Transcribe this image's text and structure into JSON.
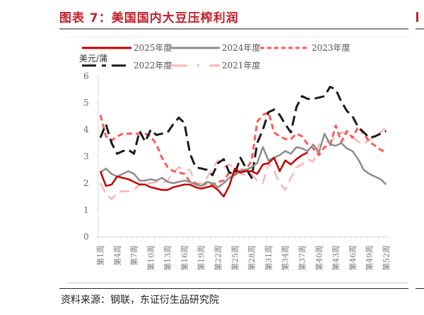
{
  "header": {
    "title": "图表 7：美国国内大豆压榨利润"
  },
  "footer": {
    "source": "资料来源：钢联，东证衍生品研究院"
  },
  "chart_data": {
    "type": "line",
    "title": "图表 7：美国国内大豆压榨利润",
    "ylabel": "美元/蒲",
    "xlabel": "",
    "ylim": [
      0,
      6
    ],
    "yticks": [
      0,
      1,
      2,
      3,
      4,
      5,
      6
    ],
    "xtick_labels": [
      "第1周",
      "第4周",
      "第7周",
      "第10周",
      "第13周",
      "第16周",
      "第19周",
      "第22周",
      "第25周",
      "第28周",
      "第31周",
      "第34周",
      "第37周",
      "第40周",
      "第43周",
      "第46周",
      "第49周",
      "第52周"
    ],
    "x": [
      1,
      2,
      3,
      4,
      5,
      6,
      7,
      8,
      9,
      10,
      11,
      12,
      13,
      14,
      15,
      16,
      17,
      18,
      19,
      20,
      21,
      22,
      23,
      24,
      25,
      26,
      27,
      28,
      29,
      30,
      31,
      32,
      33,
      34,
      35,
      36,
      37,
      38,
      39,
      40,
      41,
      42,
      43,
      44,
      45,
      46,
      47,
      48,
      49,
      50,
      51,
      52
    ],
    "grid": false,
    "legend_position": "top",
    "series": [
      {
        "name": "2025年度",
        "color": "#c00000",
        "style": "solid",
        "values": [
          2.45,
          1.9,
          1.95,
          2.25,
          2.2,
          2.15,
          2.05,
          1.95,
          1.95,
          1.85,
          1.8,
          1.75,
          1.75,
          1.85,
          1.9,
          1.95,
          1.95,
          1.85,
          1.8,
          1.85,
          1.9,
          1.75,
          1.5,
          1.9,
          2.55,
          2.4,
          2.45,
          2.45,
          2.35,
          2.7,
          2.75,
          2.95,
          2.45,
          2.85,
          2.7,
          2.9,
          3.05,
          3.15
        ]
      },
      {
        "name": "2024年度",
        "color": "#8c8c8c",
        "style": "solid",
        "values": [
          2.4,
          2.55,
          2.35,
          2.25,
          2.35,
          2.45,
          2.35,
          2.1,
          2.1,
          2.15,
          2.1,
          2.2,
          2.05,
          2.0,
          2.05,
          2.1,
          2.05,
          1.95,
          1.9,
          2.05,
          2.0,
          1.85,
          2.0,
          2.2,
          2.3,
          2.45,
          2.5,
          2.6,
          2.75,
          3.35,
          2.85,
          2.95,
          3.05,
          3.2,
          3.1,
          3.35,
          3.3,
          3.2,
          3.45,
          3.15,
          3.85,
          3.45,
          3.4,
          3.5,
          3.3,
          3.2,
          2.9,
          2.5,
          2.35,
          2.25,
          2.15,
          1.95
        ]
      },
      {
        "name": "2023年度",
        "color": "#ff5a5a",
        "style": "dashed",
        "values": [
          4.55,
          3.75,
          3.6,
          3.75,
          3.85,
          3.85,
          3.85,
          3.85,
          3.85,
          3.75,
          3.45,
          2.95,
          2.6,
          2.45,
          2.4,
          2.35,
          2.05,
          2.0,
          1.9,
          2.0,
          1.95,
          2.05,
          2.1,
          2.4,
          2.35,
          2.5,
          2.5,
          2.85,
          4.3,
          4.55,
          4.65,
          3.9,
          3.75,
          3.65,
          3.65,
          3.85,
          3.75,
          3.45,
          3.3,
          3.05,
          3.35,
          3.4,
          4.15,
          3.55,
          3.95,
          3.7,
          4.1,
          3.85,
          3.55,
          3.4,
          3.25,
          3.15
        ]
      },
      {
        "name": "2022年度",
        "color": "#1a1a1a",
        "style": "dashdot",
        "values": [
          3.7,
          4.2,
          3.5,
          3.1,
          3.2,
          3.25,
          3.1,
          3.95,
          3.55,
          4.0,
          3.8,
          3.85,
          3.9,
          4.2,
          4.45,
          4.25,
          3.1,
          2.6,
          2.55,
          2.5,
          2.3,
          2.75,
          2.9,
          2.4,
          2.35,
          2.95,
          2.55,
          2.2,
          3.5,
          4.0,
          4.65,
          4.75,
          4.55,
          4.2,
          3.9,
          4.85,
          5.25,
          5.15,
          5.15,
          5.2,
          5.25,
          5.6,
          5.5,
          5.05,
          4.7,
          4.5,
          4.1,
          3.9,
          3.7,
          3.75,
          3.85,
          3.95
        ]
      },
      {
        "name": "2021年度",
        "color": "#ffb4b4",
        "style": "longdash",
        "values": [
          2.0,
          1.6,
          1.4,
          1.65,
          1.7,
          1.7,
          1.75,
          1.95,
          2.0,
          2.0,
          2.05,
          2.0,
          2.1,
          2.4,
          2.6,
          2.5,
          2.5,
          1.95,
          2.0,
          2.2,
          2.55,
          2.85,
          2.6,
          2.7,
          2.55,
          2.35,
          2.3,
          2.35,
          2.1,
          2.0,
          2.75,
          2.45,
          2.0,
          1.75,
          2.2,
          2.6,
          2.7,
          2.9,
          2.8,
          3.45,
          3.5,
          3.6,
          3.7,
          3.9,
          3.85,
          3.75,
          3.55,
          3.45,
          3.65,
          3.7,
          3.9,
          4.1
        ]
      }
    ]
  },
  "legend": {
    "items": [
      "2025年度",
      "2024年度",
      "2023年度",
      "2022年度",
      "2021年度"
    ]
  }
}
